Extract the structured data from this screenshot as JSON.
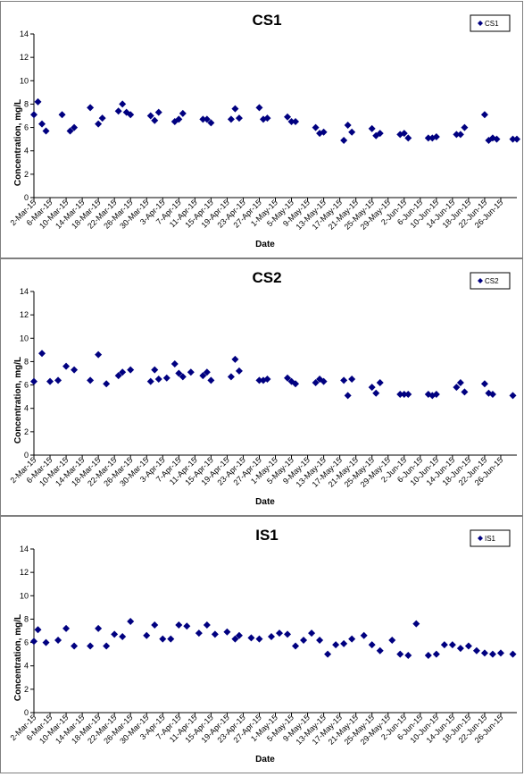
{
  "chart_data": [
    {
      "type": "scatter",
      "title": "CS1",
      "xlabel": "Date",
      "ylabel": "Concentration, mg/L",
      "ylim": [
        0,
        14
      ],
      "yticks": [
        "0",
        "2",
        "4",
        "6",
        "8",
        "10",
        "12",
        "14"
      ],
      "xlim": [
        "2015-03-02",
        "2015-06-30"
      ],
      "xtick_labels": [
        "2-Mar-15",
        "6-Mar-15",
        "10-Mar-15",
        "14-Mar-15",
        "18-Mar-15",
        "22-Mar-15",
        "26-Mar-15",
        "30-Mar-15",
        "3-Apr-15",
        "7-Apr-15",
        "11-Apr-15",
        "15-Apr-15",
        "19-Apr-15",
        "23-Apr-15",
        "27-Apr-15",
        "1-May-15",
        "5-May-15",
        "9-May-15",
        "13-May-15",
        "17-May-15",
        "21-May-15",
        "25-May-15",
        "29-May-15",
        "2-Jun-15",
        "6-Jun-15",
        "10-Jun-15",
        "14-Jun-15",
        "18-Jun-15",
        "22-Jun-15",
        "26-Jun-15"
      ],
      "legend": "top-right",
      "marker_color": "#000080",
      "series": [
        {
          "name": "CS1",
          "x": [
            "2015-03-02",
            "2015-03-03",
            "2015-03-04",
            "2015-03-05",
            "2015-03-09",
            "2015-03-11",
            "2015-03-12",
            "2015-03-16",
            "2015-03-18",
            "2015-03-19",
            "2015-03-23",
            "2015-03-24",
            "2015-03-25",
            "2015-03-26",
            "2015-03-31",
            "2015-04-01",
            "2015-04-02",
            "2015-04-06",
            "2015-04-07",
            "2015-04-08",
            "2015-04-13",
            "2015-04-14",
            "2015-04-15",
            "2015-04-20",
            "2015-04-21",
            "2015-04-22",
            "2015-04-27",
            "2015-04-28",
            "2015-04-29",
            "2015-05-04",
            "2015-05-05",
            "2015-05-06",
            "2015-05-11",
            "2015-05-12",
            "2015-05-13",
            "2015-05-18",
            "2015-05-19",
            "2015-05-20",
            "2015-05-25",
            "2015-05-26",
            "2015-05-27",
            "2015-06-01",
            "2015-06-02",
            "2015-06-03",
            "2015-06-08",
            "2015-06-09",
            "2015-06-10",
            "2015-06-15",
            "2015-06-16",
            "2015-06-17",
            "2015-06-22",
            "2015-06-23",
            "2015-06-24",
            "2015-06-25",
            "2015-06-29",
            "2015-06-30"
          ],
          "y": [
            7.1,
            8.2,
            6.3,
            5.7,
            7.1,
            5.7,
            6.0,
            7.7,
            6.3,
            6.8,
            7.4,
            8.0,
            7.3,
            7.1,
            7.0,
            6.6,
            7.3,
            6.5,
            6.7,
            7.2,
            6.7,
            6.7,
            6.4,
            6.7,
            7.6,
            6.8,
            7.7,
            6.7,
            6.8,
            6.9,
            6.5,
            6.5,
            6.0,
            5.5,
            5.6,
            4.9,
            6.2,
            5.6,
            5.9,
            5.3,
            5.5,
            5.4,
            5.5,
            5.1,
            5.1,
            5.1,
            5.2,
            5.4,
            5.4,
            6.0,
            7.1,
            4.9,
            5.1,
            5.0,
            5.0,
            5.0
          ]
        }
      ]
    },
    {
      "type": "scatter",
      "title": "CS2",
      "xlabel": "Date",
      "ylabel": "Concentration, mg/L",
      "ylim": [
        0,
        14
      ],
      "yticks": [
        "0",
        "2",
        "4",
        "6",
        "8",
        "10",
        "12",
        "14"
      ],
      "xlim": [
        "2015-03-02",
        "2015-06-30"
      ],
      "xtick_labels": [
        "2-Mar-15",
        "6-Mar-15",
        "10-Mar-15",
        "14-Mar-15",
        "18-Mar-15",
        "22-Mar-15",
        "26-Mar-15",
        "30-Mar-15",
        "3-Apr-15",
        "7-Apr-15",
        "11-Apr-15",
        "15-Apr-15",
        "19-Apr-15",
        "23-Apr-15",
        "27-Apr-15",
        "1-May-15",
        "5-May-15",
        "9-May-15",
        "13-May-15",
        "17-May-15",
        "21-May-15",
        "25-May-15",
        "29-May-15",
        "2-Jun-15",
        "6-Jun-15",
        "10-Jun-15",
        "14-Jun-15",
        "18-Jun-15",
        "22-Jun-15",
        "26-Jun-15"
      ],
      "legend": "top-right",
      "marker_color": "#000080",
      "series": [
        {
          "name": "CS2",
          "x": [
            "2015-03-02",
            "2015-03-04",
            "2015-03-06",
            "2015-03-08",
            "2015-03-10",
            "2015-03-12",
            "2015-03-16",
            "2015-03-18",
            "2015-03-20",
            "2015-03-23",
            "2015-03-24",
            "2015-03-26",
            "2015-03-31",
            "2015-04-01",
            "2015-04-02",
            "2015-04-04",
            "2015-04-06",
            "2015-04-07",
            "2015-04-08",
            "2015-04-10",
            "2015-04-13",
            "2015-04-14",
            "2015-04-15",
            "2015-04-20",
            "2015-04-21",
            "2015-04-22",
            "2015-04-27",
            "2015-04-28",
            "2015-04-29",
            "2015-05-04",
            "2015-05-05",
            "2015-05-06",
            "2015-05-11",
            "2015-05-12",
            "2015-05-13",
            "2015-05-18",
            "2015-05-19",
            "2015-05-20",
            "2015-05-25",
            "2015-05-26",
            "2015-05-27",
            "2015-06-01",
            "2015-06-02",
            "2015-06-03",
            "2015-06-08",
            "2015-06-09",
            "2015-06-10",
            "2015-06-15",
            "2015-06-16",
            "2015-06-17",
            "2015-06-22",
            "2015-06-23",
            "2015-06-24",
            "2015-06-29"
          ],
          "y": [
            6.3,
            8.7,
            6.3,
            6.4,
            7.6,
            7.3,
            6.4,
            8.6,
            6.1,
            6.8,
            7.1,
            7.3,
            6.3,
            7.3,
            6.5,
            6.6,
            7.8,
            7.0,
            6.7,
            7.1,
            6.8,
            7.1,
            6.4,
            6.7,
            8.2,
            7.2,
            6.4,
            6.4,
            6.5,
            6.6,
            6.3,
            6.1,
            6.2,
            6.5,
            6.3,
            6.4,
            5.1,
            6.5,
            5.8,
            5.3,
            6.2,
            5.2,
            5.2,
            5.2,
            5.2,
            5.1,
            5.2,
            5.8,
            6.2,
            5.4,
            6.1,
            5.3,
            5.2,
            5.1
          ]
        }
      ]
    },
    {
      "type": "scatter",
      "title": "IS1",
      "xlabel": "Date",
      "ylabel": "Concentration, mg/L",
      "ylim": [
        0,
        14
      ],
      "yticks": [
        "0",
        "2",
        "4",
        "6",
        "8",
        "10",
        "12",
        "14"
      ],
      "xlim": [
        "2015-03-02",
        "2015-06-30"
      ],
      "xtick_labels": [
        "2-Mar-15",
        "6-Mar-15",
        "10-Mar-15",
        "14-Mar-15",
        "18-Mar-15",
        "22-Mar-15",
        "26-Mar-15",
        "30-Mar-15",
        "3-Apr-15",
        "7-Apr-15",
        "11-Apr-15",
        "15-Apr-15",
        "19-Apr-15",
        "23-Apr-15",
        "27-Apr-15",
        "1-May-15",
        "5-May-15",
        "9-May-15",
        "13-May-15",
        "17-May-15",
        "21-May-15",
        "25-May-15",
        "29-May-15",
        "2-Jun-15",
        "6-Jun-15",
        "10-Jun-15",
        "14-Jun-15",
        "18-Jun-15",
        "22-Jun-15",
        "26-Jun-15"
      ],
      "legend": "top-right",
      "marker_color": "#000080",
      "series": [
        {
          "name": "IS1",
          "x": [
            "2015-03-02",
            "2015-03-03",
            "2015-03-05",
            "2015-03-08",
            "2015-03-10",
            "2015-03-12",
            "2015-03-16",
            "2015-03-18",
            "2015-03-20",
            "2015-03-22",
            "2015-03-24",
            "2015-03-26",
            "2015-03-30",
            "2015-04-01",
            "2015-04-03",
            "2015-04-05",
            "2015-04-07",
            "2015-04-09",
            "2015-04-12",
            "2015-04-14",
            "2015-04-16",
            "2015-04-19",
            "2015-04-21",
            "2015-04-22",
            "2015-04-25",
            "2015-04-27",
            "2015-04-30",
            "2015-05-02",
            "2015-05-04",
            "2015-05-06",
            "2015-05-08",
            "2015-05-10",
            "2015-05-12",
            "2015-05-14",
            "2015-05-16",
            "2015-05-18",
            "2015-05-20",
            "2015-05-23",
            "2015-05-25",
            "2015-05-27",
            "2015-05-30",
            "2015-06-01",
            "2015-06-03",
            "2015-06-05",
            "2015-06-08",
            "2015-06-10",
            "2015-06-12",
            "2015-06-14",
            "2015-06-16",
            "2015-06-18",
            "2015-06-20",
            "2015-06-22",
            "2015-06-24",
            "2015-06-26",
            "2015-06-29"
          ],
          "y": [
            6.1,
            7.1,
            6.0,
            6.2,
            7.2,
            5.7,
            5.7,
            7.2,
            5.7,
            6.7,
            6.5,
            7.8,
            6.6,
            7.5,
            6.3,
            6.3,
            7.5,
            7.4,
            6.8,
            7.5,
            6.7,
            6.9,
            6.3,
            6.6,
            6.4,
            6.3,
            6.5,
            6.8,
            6.7,
            5.7,
            6.2,
            6.8,
            6.2,
            5.0,
            5.8,
            5.9,
            6.3,
            6.6,
            5.8,
            5.3,
            6.2,
            5.0,
            4.9,
            7.6,
            4.9,
            5.0,
            5.8,
            5.8,
            5.5,
            5.7,
            5.3,
            5.1,
            5.0,
            5.1,
            5.0
          ]
        }
      ]
    }
  ]
}
